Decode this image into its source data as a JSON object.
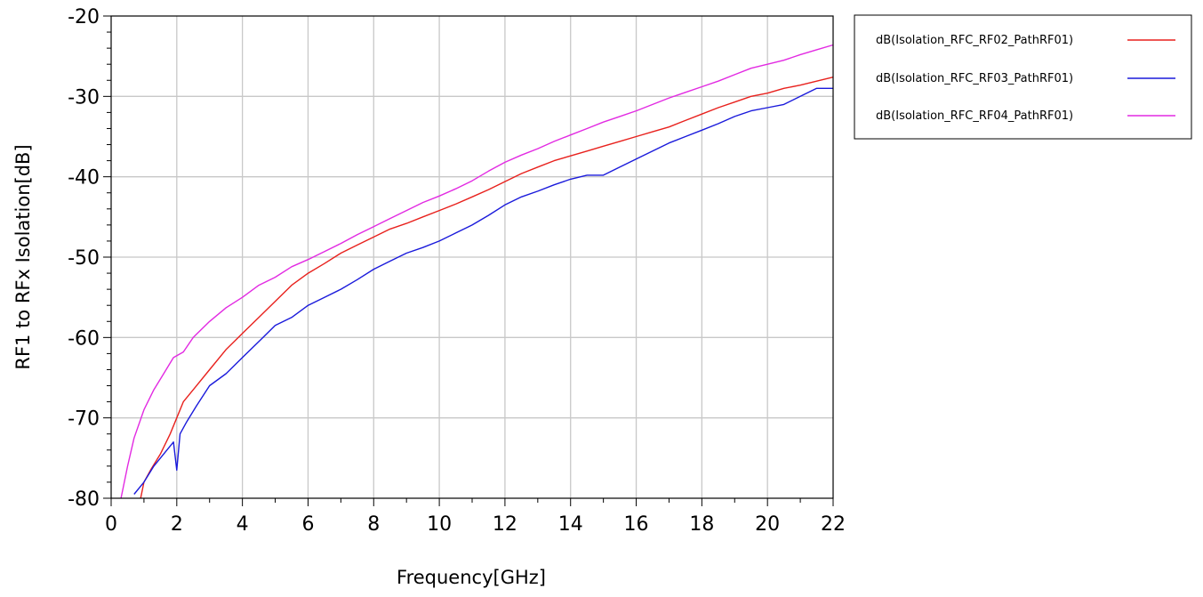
{
  "chart_data": {
    "type": "line",
    "title": "",
    "xlabel": "Frequency[GHz]",
    "ylabel": "RF1 to RFx Isolation[dB]",
    "xlim": [
      0,
      22
    ],
    "ylim": [
      -80,
      -20
    ],
    "x_ticks": [
      "0",
      "2",
      "4",
      "6",
      "8",
      "10",
      "12",
      "14",
      "16",
      "18",
      "20",
      "22"
    ],
    "y_ticks": [
      "-20",
      "-30",
      "-40",
      "-50",
      "-60",
      "-70",
      "-80"
    ],
    "grid": true,
    "legend_position": "right",
    "series": [
      {
        "name": "dB(Isolation_RFC_RF02_PathRF01)",
        "color": "#e8211d",
        "x": [
          0.9,
          1.0,
          1.2,
          1.5,
          1.8,
          2.0,
          2.2,
          2.5,
          3.0,
          3.5,
          4.0,
          4.5,
          5.0,
          5.5,
          6.0,
          6.5,
          7.0,
          7.5,
          8.0,
          8.5,
          9.0,
          9.5,
          10.0,
          10.5,
          11.0,
          11.5,
          12.0,
          12.5,
          13.0,
          13.5,
          14.0,
          14.5,
          15.0,
          15.5,
          16.0,
          16.5,
          17.0,
          17.5,
          18.0,
          18.5,
          19.0,
          19.5,
          20.0,
          20.5,
          21.0,
          21.5,
          22.0
        ],
        "y": [
          -80.0,
          -78.0,
          -76.5,
          -74.5,
          -72.0,
          -70.0,
          -68.0,
          -66.5,
          -64.0,
          -61.5,
          -59.5,
          -57.5,
          -55.5,
          -53.5,
          -52.0,
          -50.8,
          -49.5,
          -48.5,
          -47.5,
          -46.5,
          -45.8,
          -45.0,
          -44.2,
          -43.4,
          -42.5,
          -41.6,
          -40.6,
          -39.6,
          -38.8,
          -38.0,
          -37.4,
          -36.8,
          -36.2,
          -35.6,
          -35.0,
          -34.4,
          -33.8,
          -33.0,
          -32.2,
          -31.4,
          -30.7,
          -30.0,
          -29.6,
          -29.0,
          -28.6,
          -28.1,
          -27.6
        ]
      },
      {
        "name": "dB(Isolation_RFC_RF03_PathRF01)",
        "color": "#1a1adb",
        "x": [
          0.7,
          1.0,
          1.3,
          1.6,
          1.9,
          2.0,
          2.1,
          2.3,
          2.6,
          3.0,
          3.5,
          4.0,
          4.5,
          5.0,
          5.5,
          6.0,
          6.5,
          7.0,
          7.5,
          8.0,
          8.5,
          9.0,
          9.5,
          10.0,
          10.5,
          11.0,
          11.5,
          12.0,
          12.5,
          13.0,
          13.5,
          14.0,
          14.5,
          15.0,
          15.5,
          16.0,
          16.5,
          17.0,
          17.5,
          18.0,
          18.5,
          19.0,
          19.5,
          20.0,
          20.5,
          21.0,
          21.5,
          22.0
        ],
        "y": [
          -79.5,
          -78.0,
          -76.0,
          -74.5,
          -73.0,
          -76.5,
          -72.0,
          -70.5,
          -68.5,
          -66.0,
          -64.5,
          -62.5,
          -60.5,
          -58.5,
          -57.5,
          -56.0,
          -55.0,
          -54.0,
          -52.8,
          -51.5,
          -50.5,
          -49.5,
          -48.8,
          -48.0,
          -47.0,
          -46.0,
          -44.8,
          -43.5,
          -42.5,
          -41.8,
          -41.0,
          -40.3,
          -39.8,
          -39.8,
          -38.8,
          -37.8,
          -36.8,
          -35.8,
          -35.0,
          -34.2,
          -33.4,
          -32.5,
          -31.8,
          -31.4,
          -31.0,
          -30.0,
          -29.0,
          -29.0
        ]
      },
      {
        "name": "dB(Isolation_RFC_RF04_PathRF01)",
        "color": "#e22ae2",
        "x": [
          0.3,
          0.5,
          0.7,
          1.0,
          1.3,
          1.6,
          1.9,
          2.2,
          2.5,
          3.0,
          3.5,
          4.0,
          4.5,
          5.0,
          5.5,
          6.0,
          6.5,
          7.0,
          7.5,
          8.0,
          8.5,
          9.0,
          9.5,
          10.0,
          10.5,
          11.0,
          11.5,
          12.0,
          12.5,
          13.0,
          13.5,
          14.0,
          14.5,
          15.0,
          15.5,
          16.0,
          16.5,
          17.0,
          17.5,
          18.0,
          18.5,
          19.0,
          19.5,
          20.0,
          20.5,
          21.0,
          21.5,
          22.0
        ],
        "y": [
          -80.0,
          -76.0,
          -72.5,
          -69.0,
          -66.5,
          -64.5,
          -62.5,
          -61.8,
          -60.0,
          -58.0,
          -56.3,
          -55.0,
          -53.5,
          -52.5,
          -51.2,
          -50.3,
          -49.3,
          -48.3,
          -47.2,
          -46.2,
          -45.2,
          -44.2,
          -43.2,
          -42.4,
          -41.5,
          -40.5,
          -39.3,
          -38.2,
          -37.3,
          -36.5,
          -35.6,
          -34.8,
          -34.0,
          -33.2,
          -32.5,
          -31.8,
          -31.0,
          -30.2,
          -29.5,
          -28.8,
          -28.1,
          -27.3,
          -26.5,
          -26.0,
          -25.5,
          -24.8,
          -24.2,
          -23.6
        ]
      }
    ]
  }
}
